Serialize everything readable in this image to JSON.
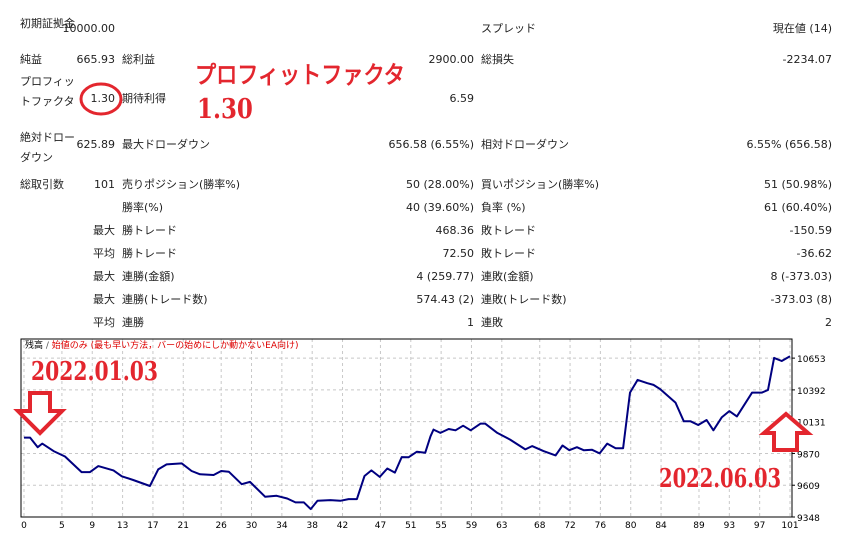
{
  "stats": {
    "initial_deposit": {
      "label": "初期証拠金",
      "value": "10000.00"
    },
    "spread": {
      "label": "スプレッド",
      "value": "現在値 (14)"
    },
    "net_profit": {
      "label": "純益",
      "value": "665.93"
    },
    "gross_profit": {
      "label": "総利益",
      "value": "2900.00"
    },
    "gross_loss": {
      "label": "総損失",
      "value": "-2234.07"
    },
    "profit_factor": {
      "label": "プロフィットファクタ",
      "value": "1.30"
    },
    "expected_payoff": {
      "label": "期待利得",
      "value": "6.59"
    },
    "abs_drawdown": {
      "label": "絶対ドローダウン",
      "value": "625.89"
    },
    "max_drawdown": {
      "label": "最大ドローダウン",
      "value": "656.58 (6.55%)"
    },
    "rel_drawdown": {
      "label": "相対ドローダウン",
      "value": "6.55% (656.58)"
    },
    "total_trades": {
      "label": "総取引数",
      "value": "101"
    },
    "rows": [
      {
        "prefix": "",
        "label1": "売りポジション(勝率%)",
        "value1": "50 (28.00%)",
        "label2": "買いポジション(勝率%)",
        "value2": "51 (50.98%)"
      },
      {
        "prefix": "",
        "label1": "勝率(%)",
        "value1": "40 (39.60%)",
        "label2": "負率 (%)",
        "value2": "61 (60.40%)"
      },
      {
        "prefix": "最大",
        "label1": "勝トレード",
        "value1": "468.36",
        "label2": "敗トレード",
        "value2": "-150.59"
      },
      {
        "prefix": "平均",
        "label1": "勝トレード",
        "value1": "72.50",
        "label2": "敗トレード",
        "value2": "-36.62"
      },
      {
        "prefix": "最大",
        "label1": "連勝(金額)",
        "value1": "4 (259.77)",
        "label2": "連敗(金額)",
        "value2": "8 (-373.03)"
      },
      {
        "prefix": "最大",
        "label1": "連勝(トレード数)",
        "value1": "574.43 (2)",
        "label2": "連敗(トレード数)",
        "value2": "-373.03 (8)"
      },
      {
        "prefix": "平均",
        "label1": "連勝",
        "value1": "1",
        "label2": "連敗",
        "value2": "2"
      }
    ]
  },
  "annotations": {
    "pf_title": "プロフィットファクタ",
    "pf_value": "1.30",
    "start_date": "2022.01.03",
    "end_date": "2022.06.03",
    "accent_color": "#e3262e"
  },
  "chart_data": {
    "type": "line",
    "caption_series": "残高",
    "caption_sep": " / ",
    "caption_model": "始値のみ (最も早い方法，バーの始めにしか動かないEA向け)",
    "line_color": "#000080",
    "grid": true,
    "xlim": [
      0,
      101
    ],
    "ylim": [
      9348,
      10810
    ],
    "xticks": [
      "0",
      "5",
      "9",
      "13",
      "17",
      "21",
      "26",
      "30",
      "34",
      "38",
      "42",
      "47",
      "51",
      "55",
      "59",
      "63",
      "68",
      "72",
      "76",
      "80",
      "84",
      "89",
      "93",
      "97",
      "101"
    ],
    "yticks": [
      "10653",
      "10392",
      "10131",
      "9870",
      "9609",
      "9348"
    ],
    "x": [
      0,
      0.8,
      1.8,
      2.4,
      3.9,
      5.4,
      7.6,
      8.7,
      9.8,
      11.8,
      12.9,
      14.4,
      16.6,
      17.7,
      18.8,
      20.8,
      22.1,
      23.2,
      25,
      26,
      27,
      28.7,
      29.8,
      31.8,
      33.3,
      34.7,
      35.8,
      36.9,
      37.8,
      38.7,
      40.4,
      41.7,
      42.8,
      43.9,
      44.9,
      45.8,
      46.9,
      47.9,
      48.9,
      49.8,
      50.7,
      51.8,
      52.9,
      53.6,
      54,
      54.9,
      56,
      56.9,
      57.9,
      58.9,
      60.2,
      60.8,
      62.4,
      64.1,
      66.1,
      67,
      68.5,
      70.1,
      71,
      71.9,
      72.9,
      73.8,
      74.9,
      75.9,
      76.9,
      78,
      79,
      79.9,
      80.9,
      82.2,
      83,
      83.9,
      85.9,
      87,
      87.9,
      88.9,
      90,
      90.9,
      92,
      93,
      94,
      96,
      97.3,
      98.1,
      98.9,
      99.9,
      101
    ],
    "y": [
      10000,
      10000,
      9921,
      9951,
      9889,
      9845,
      9717,
      9717,
      9766,
      9731,
      9682,
      9652,
      9603,
      9739,
      9780,
      9788,
      9726,
      9699,
      9693,
      9726,
      9720,
      9617,
      9636,
      9514,
      9522,
      9500,
      9468,
      9468,
      9413,
      9481,
      9487,
      9481,
      9495,
      9495,
      9685,
      9731,
      9677,
      9746,
      9713,
      9840,
      9838,
      9884,
      9875,
      10011,
      10066,
      10039,
      10071,
      10060,
      10098,
      10060,
      10115,
      10115,
      10039,
      9984,
      9903,
      9930,
      9889,
      9854,
      9935,
      9897,
      9921,
      9897,
      9900,
      9870,
      9951,
      9913,
      9913,
      10370,
      10474,
      10447,
      10433,
      10398,
      10288,
      10134,
      10134,
      10104,
      10145,
      10060,
      10166,
      10218,
      10174,
      10370,
      10370,
      10392,
      10655,
      10629,
      10669
    ]
  }
}
